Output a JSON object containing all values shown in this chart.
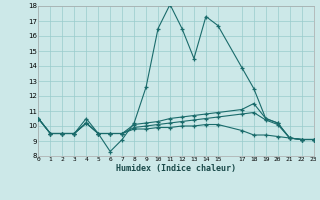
{
  "xlabel": "Humidex (Indice chaleur)",
  "bg_color": "#cce8e8",
  "grid_color": "#99cccc",
  "line_color": "#1a6b6b",
  "xlim": [
    0,
    23
  ],
  "ylim": [
    8,
    18
  ],
  "xticks": [
    0,
    1,
    2,
    3,
    4,
    5,
    6,
    7,
    8,
    9,
    10,
    11,
    12,
    13,
    14,
    15,
    17,
    18,
    19,
    20,
    21,
    22,
    23
  ],
  "yticks": [
    8,
    9,
    10,
    11,
    12,
    13,
    14,
    15,
    16,
    17,
    18
  ],
  "series": [
    {
      "x": [
        0,
        1,
        2,
        3,
        4,
        5,
        6,
        7,
        8,
        9,
        10,
        11,
        12,
        13,
        14,
        15,
        17,
        18,
        19,
        20,
        21,
        22,
        23
      ],
      "y": [
        10.5,
        9.5,
        9.5,
        9.5,
        10.5,
        9.5,
        8.3,
        9.1,
        10.2,
        12.6,
        16.5,
        18.1,
        16.5,
        14.5,
        17.3,
        16.7,
        13.9,
        12.5,
        10.5,
        10.2,
        9.2,
        9.1,
        9.1
      ]
    },
    {
      "x": [
        0,
        1,
        2,
        3,
        4,
        5,
        6,
        7,
        8,
        9,
        10,
        11,
        12,
        13,
        14,
        15,
        17,
        18,
        19,
        20,
        21,
        22,
        23
      ],
      "y": [
        10.5,
        9.5,
        9.5,
        9.5,
        10.2,
        9.5,
        9.5,
        9.5,
        10.1,
        10.2,
        10.3,
        10.5,
        10.6,
        10.7,
        10.8,
        10.9,
        11.1,
        11.5,
        10.5,
        10.2,
        9.2,
        9.1,
        9.1
      ]
    },
    {
      "x": [
        0,
        1,
        2,
        3,
        4,
        5,
        6,
        7,
        8,
        9,
        10,
        11,
        12,
        13,
        14,
        15,
        17,
        18,
        19,
        20,
        21,
        22,
        23
      ],
      "y": [
        10.5,
        9.5,
        9.5,
        9.5,
        10.2,
        9.5,
        9.5,
        9.5,
        9.9,
        10.0,
        10.1,
        10.2,
        10.3,
        10.4,
        10.5,
        10.6,
        10.8,
        10.9,
        10.4,
        10.1,
        9.2,
        9.1,
        9.1
      ]
    },
    {
      "x": [
        0,
        1,
        2,
        3,
        4,
        5,
        6,
        7,
        8,
        9,
        10,
        11,
        12,
        13,
        14,
        15,
        17,
        18,
        19,
        20,
        21,
        22,
        23
      ],
      "y": [
        10.5,
        9.5,
        9.5,
        9.5,
        10.2,
        9.5,
        9.5,
        9.5,
        9.8,
        9.8,
        9.9,
        9.9,
        10.0,
        10.0,
        10.1,
        10.1,
        9.7,
        9.4,
        9.4,
        9.3,
        9.2,
        9.1,
        9.1
      ]
    }
  ]
}
